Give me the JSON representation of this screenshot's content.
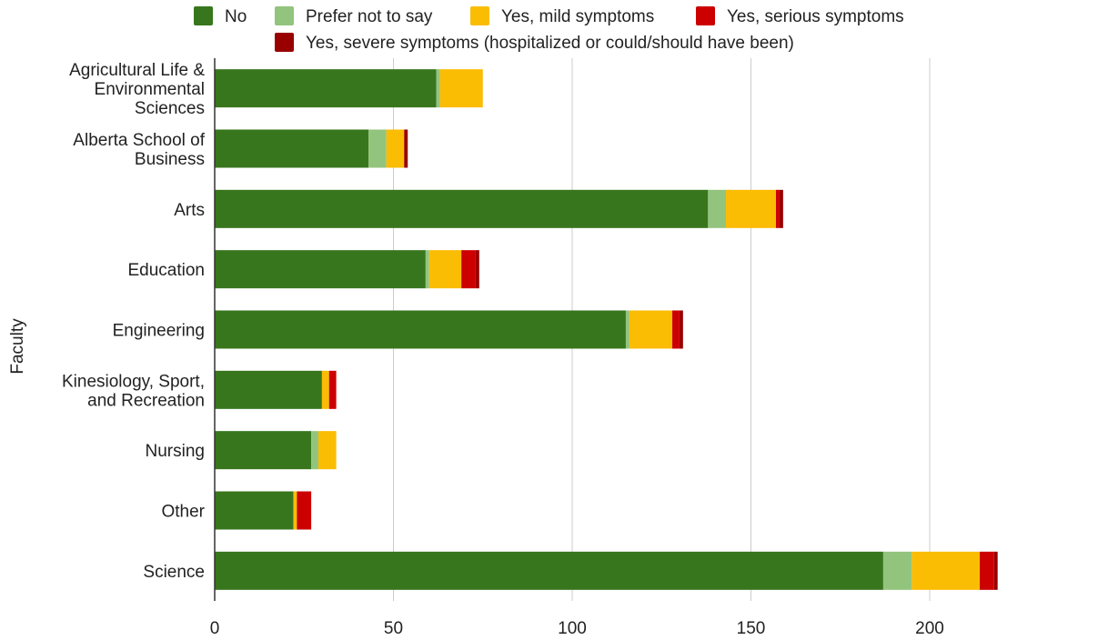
{
  "chart_data": {
    "type": "bar",
    "orientation": "horizontal",
    "stacked": true,
    "title": "",
    "ylabel": "Faculty",
    "xlabel": "",
    "xlim": [
      0,
      250
    ],
    "x_ticks": [
      0,
      50,
      100,
      150,
      200
    ],
    "grid": true,
    "legend_position": "top",
    "categories": [
      "Agricultural Life & Environmental Sciences",
      "Alberta School of Business",
      "Arts",
      "Education",
      "Engineering",
      "Kinesiology, Sport, and Recreation",
      "Nursing",
      "Other",
      "Science"
    ],
    "series": [
      {
        "name": "No",
        "color": "#38761d",
        "values": [
          62,
          43,
          138,
          59,
          115,
          30,
          27,
          22,
          187
        ]
      },
      {
        "name": "Prefer not to say",
        "color": "#93c47d",
        "values": [
          1,
          5,
          5,
          1,
          1,
          0,
          2,
          0,
          8
        ]
      },
      {
        "name": "Yes, mild symptoms",
        "color": "#fbbc04",
        "values": [
          12,
          5,
          14,
          9,
          12,
          2,
          5,
          1,
          19
        ]
      },
      {
        "name": "Yes, serious symptoms",
        "color": "#cc0000",
        "values": [
          0,
          0,
          1,
          4,
          2,
          2,
          0,
          4,
          4
        ]
      },
      {
        "name": "Yes, severe symptoms (hospitalized or could/should have been)",
        "color": "#990000",
        "values": [
          0,
          1,
          1,
          1,
          1,
          0,
          0,
          0,
          1
        ]
      }
    ]
  }
}
